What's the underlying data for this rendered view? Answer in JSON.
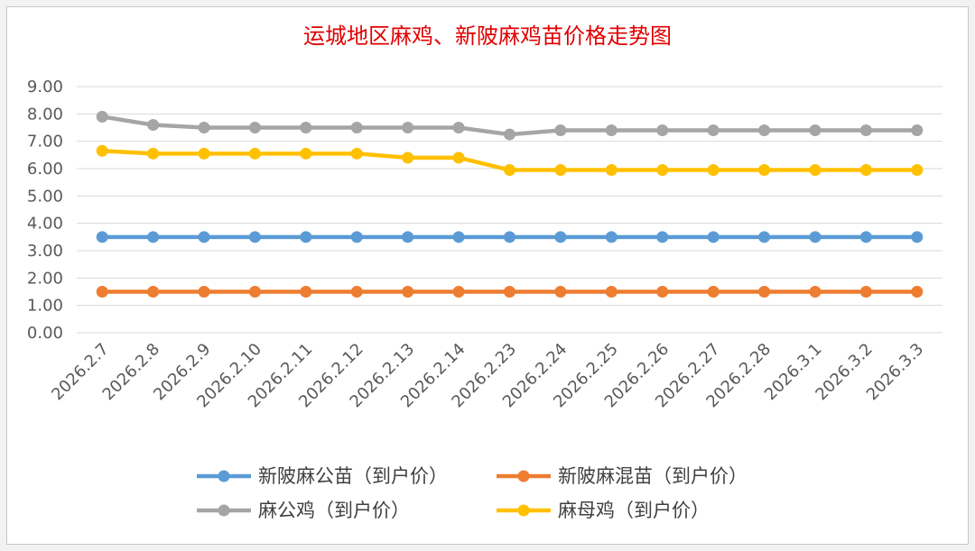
{
  "chart_data": {
    "type": "line",
    "title": "运城地区麻鸡、新陂麻鸡苗价格走势图",
    "xlabel": "",
    "ylabel": "",
    "ylim": [
      0,
      9
    ],
    "y_ticks": [
      "0.00",
      "1.00",
      "2.00",
      "3.00",
      "4.00",
      "5.00",
      "6.00",
      "7.00",
      "8.00",
      "9.00"
    ],
    "grid": true,
    "legend_position": "bottom",
    "categories": [
      "2026.2.7",
      "2026.2.8",
      "2026.2.9",
      "2026.2.10",
      "2026.2.11",
      "2026.2.12",
      "2026.2.13",
      "2026.2.14",
      "2026.2.23",
      "2026.2.24",
      "2026.2.25",
      "2026.2.26",
      "2026.2.27",
      "2026.2.28",
      "2026.3.1",
      "2026.3.2",
      "2026.3.3"
    ],
    "series": [
      {
        "name": "新陂麻公苗（到户价）",
        "color": "#5b9bd5",
        "values": [
          3.5,
          3.5,
          3.5,
          3.5,
          3.5,
          3.5,
          3.5,
          3.5,
          3.5,
          3.5,
          3.5,
          3.5,
          3.5,
          3.5,
          3.5,
          3.5,
          3.5
        ]
      },
      {
        "name": "新陂麻混苗（到户价）",
        "color": "#ed7d31",
        "values": [
          1.5,
          1.5,
          1.5,
          1.5,
          1.5,
          1.5,
          1.5,
          1.5,
          1.5,
          1.5,
          1.5,
          1.5,
          1.5,
          1.5,
          1.5,
          1.5,
          1.5
        ]
      },
      {
        "name": "麻公鸡（到户价）",
        "color": "#a5a5a5",
        "values": [
          7.9,
          7.6,
          7.5,
          7.5,
          7.5,
          7.5,
          7.5,
          7.5,
          7.25,
          7.4,
          7.4,
          7.4,
          7.4,
          7.4,
          7.4,
          7.4,
          7.4
        ]
      },
      {
        "name": "麻母鸡（到户价）",
        "color": "#ffc000",
        "values": [
          6.65,
          6.55,
          6.55,
          6.55,
          6.55,
          6.55,
          6.4,
          6.4,
          5.95,
          5.95,
          5.95,
          5.95,
          5.95,
          5.95,
          5.95,
          5.95,
          5.95
        ]
      }
    ]
  }
}
